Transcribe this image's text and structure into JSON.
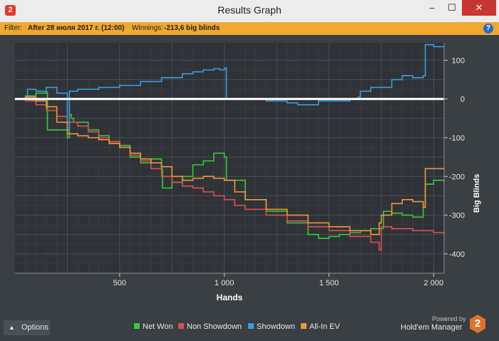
{
  "window": {
    "title": "Results Graph",
    "app_icon": "2",
    "controls": [
      "–",
      "☐",
      "✕"
    ]
  },
  "filter": {
    "label": "Filter:",
    "value": "After 28 июля 2017 г. (12:00)",
    "winnings_label": "Winnings:",
    "winnings_value": "-213,6 big blinds",
    "help": "?"
  },
  "options": {
    "label": "Options",
    "icon": "chevron-up-icon"
  },
  "branding": {
    "powered": "Powered by",
    "name": "Hold'em Manager",
    "logo": "2"
  },
  "chart_data": {
    "type": "line",
    "xlabel": "Hands",
    "ylabel": "Big Blinds",
    "xlim": [
      0,
      2050
    ],
    "ylim": [
      -450,
      145
    ],
    "xticks": [
      500,
      1000,
      1500,
      2000
    ],
    "xtick_labels": [
      "500",
      "1 000",
      "1 500",
      "2 000"
    ],
    "yticks": [
      100,
      0,
      -100,
      -200,
      -300,
      -400
    ],
    "grid": true,
    "legend": "bottom",
    "series": [
      {
        "name": "Net Won",
        "color": "#37c837",
        "x": [
          0,
          50,
          100,
          150,
          155,
          250,
          260,
          270,
          280,
          350,
          400,
          450,
          500,
          550,
          600,
          650,
          700,
          705,
          750,
          800,
          850,
          900,
          950,
          1000,
          1010,
          1100,
          1200,
          1300,
          1400,
          1450,
          1500,
          1550,
          1600,
          1650,
          1700,
          1750,
          1760,
          1800,
          1850,
          1900,
          1950,
          1960,
          2000,
          2050
        ],
        "y": [
          0,
          8,
          15,
          18,
          -80,
          -100,
          -40,
          -50,
          -60,
          -80,
          -95,
          -110,
          -120,
          -150,
          -165,
          -155,
          -180,
          -230,
          -215,
          -200,
          -170,
          -160,
          -140,
          -150,
          -210,
          -260,
          -290,
          -320,
          -350,
          -360,
          -355,
          -350,
          -345,
          -340,
          -335,
          -335,
          -290,
          -295,
          -300,
          -305,
          -280,
          -220,
          -210,
          -213
        ]
      },
      {
        "name": "Non Showdown",
        "color": "#dd4f4f",
        "x": [
          0,
          50,
          100,
          150,
          200,
          250,
          300,
          350,
          400,
          450,
          500,
          550,
          600,
          650,
          700,
          750,
          800,
          850,
          900,
          950,
          1000,
          1050,
          1100,
          1200,
          1300,
          1400,
          1500,
          1600,
          1700,
          1740,
          1750,
          1800,
          1900,
          2000,
          2050
        ],
        "y": [
          0,
          -5,
          -15,
          -30,
          -45,
          -60,
          -70,
          -85,
          -100,
          -110,
          -125,
          -145,
          -160,
          -180,
          -200,
          -215,
          -225,
          -230,
          -240,
          -250,
          -260,
          -275,
          -285,
          -300,
          -315,
          -330,
          -340,
          -355,
          -370,
          -390,
          -330,
          -335,
          -340,
          -345,
          -350
        ]
      },
      {
        "name": "Showdown",
        "color": "#3a9be0",
        "x": [
          0,
          50,
          60,
          100,
          150,
          200,
          250,
          260,
          300,
          400,
          500,
          600,
          700,
          800,
          850,
          900,
          950,
          980,
          1000,
          1010,
          1200,
          1300,
          1350,
          1400,
          1450,
          1500,
          1600,
          1640,
          1650,
          1700,
          1800,
          1850,
          1900,
          1950,
          1960,
          2000,
          2050
        ],
        "y": [
          0,
          5,
          25,
          20,
          30,
          15,
          -80,
          20,
          25,
          30,
          35,
          45,
          55,
          65,
          70,
          75,
          78,
          75,
          80,
          0,
          -5,
          -10,
          -15,
          -15,
          -5,
          -5,
          0,
          5,
          20,
          30,
          50,
          60,
          55,
          60,
          140,
          135,
          135
        ]
      },
      {
        "name": "All-In EV",
        "color": "#f0963a",
        "x": [
          0,
          50,
          100,
          150,
          200,
          250,
          300,
          350,
          400,
          450,
          500,
          550,
          600,
          650,
          700,
          750,
          800,
          850,
          900,
          950,
          1000,
          1050,
          1100,
          1200,
          1300,
          1400,
          1500,
          1600,
          1700,
          1740,
          1750,
          1800,
          1850,
          1900,
          1950,
          1960,
          2000,
          2050
        ],
        "y": [
          0,
          5,
          -5,
          -20,
          -60,
          -90,
          -95,
          -100,
          -105,
          -115,
          -125,
          -140,
          -155,
          -165,
          -175,
          -200,
          -210,
          -205,
          -200,
          -205,
          -210,
          -240,
          -260,
          -285,
          -300,
          -320,
          -330,
          -340,
          -350,
          -320,
          -300,
          -270,
          -260,
          -265,
          -280,
          -180,
          -180,
          -182
        ]
      }
    ]
  }
}
